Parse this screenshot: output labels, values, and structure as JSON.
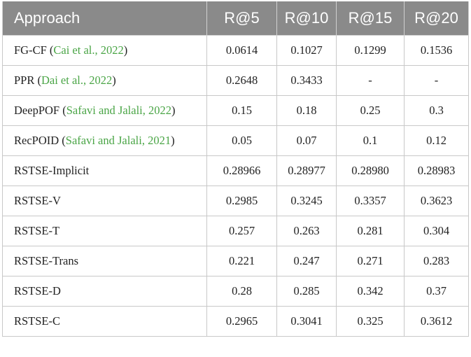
{
  "table": {
    "header": [
      "Approach",
      "R@5",
      "R@10",
      "R@15",
      "R@20"
    ],
    "rows": [
      [
        {
          "prefix": "FG-CF (",
          "citation": "Cai et al., 2022",
          "suffix": ")"
        },
        "0.0614",
        "0.1027",
        "0.1299",
        "0.1536"
      ],
      [
        {
          "prefix": "PPR (",
          "citation": "Dai et al., 2022",
          "suffix": ")"
        },
        "0.2648",
        "0.3433",
        "-",
        "-"
      ],
      [
        {
          "prefix": "DeepPOF (",
          "citation": "Safavi and Jalali, 2022",
          "suffix": ")"
        },
        "0.15",
        "0.18",
        "0.25",
        "0.3"
      ],
      [
        {
          "prefix": "RecPOID (",
          "citation": "Safavi and Jalali, 2021",
          "suffix": ")"
        },
        "0.05",
        "0.07",
        "0.1",
        "0.12"
      ],
      [
        {
          "prefix": "RSTSE-Implicit"
        },
        "0.28966",
        "0.28977",
        "0.28980",
        "0.28983"
      ],
      [
        {
          "prefix": "RSTSE-V"
        },
        "0.2985",
        "0.3245",
        "0.3357",
        "0.3623"
      ],
      [
        {
          "prefix": "RSTSE-T"
        },
        "0.257",
        "0.263",
        "0.281",
        "0.304"
      ],
      [
        {
          "prefix": "RSTSE-Trans"
        },
        "0.221",
        "0.247",
        "0.271",
        "0.283"
      ],
      [
        {
          "prefix": "RSTSE-D"
        },
        "0.28",
        "0.285",
        "0.342",
        "0.37"
      ],
      [
        {
          "prefix": "RSTSE-C"
        },
        "0.2965",
        "0.3041",
        "0.325",
        "0.3612"
      ]
    ]
  }
}
